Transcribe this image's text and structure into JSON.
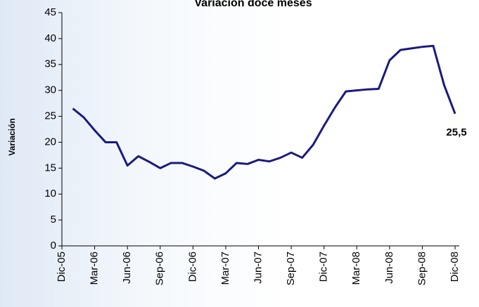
{
  "chart_data": {
    "type": "line",
    "title": "Variación doce meses",
    "y_label": "Variación",
    "categories": [
      "Dic-05",
      null,
      null,
      "Mar-06",
      null,
      null,
      "Jun-06",
      null,
      null,
      "Sep-06",
      null,
      null,
      "Dic-06",
      null,
      null,
      "Mar-07",
      null,
      null,
      "Jun-07",
      null,
      null,
      "Sep-07",
      null,
      null,
      "Dic-07",
      null,
      null,
      "Mar-08",
      null,
      null,
      "Jun-08",
      null,
      null,
      "Sep-08",
      null,
      null,
      "Dic-08"
    ],
    "series": [
      {
        "name": "Variación",
        "color": "#1a1a80",
        "values": [
          null,
          26.5,
          24.8,
          22.3,
          20,
          20,
          15.5,
          17.3,
          16.2,
          15,
          16,
          16,
          15.3,
          14.5,
          13,
          14,
          16,
          15.8,
          16.6,
          16.3,
          17,
          18,
          17,
          19.5,
          23.2,
          26.7,
          29.8,
          30,
          30.2,
          30.3,
          35.8,
          37.8,
          38.1,
          38.4,
          38.6,
          31,
          25.5
        ],
        "value_labels": [
          null,
          null,
          null,
          null,
          null,
          null,
          null,
          null,
          null,
          null,
          null,
          null,
          null,
          null,
          null,
          null,
          null,
          null,
          null,
          null,
          null,
          null,
          null,
          null,
          null,
          null,
          null,
          null,
          null,
          null,
          null,
          null,
          null,
          null,
          null,
          null,
          "25,5"
        ]
      }
    ],
    "ylim": [
      0,
      45
    ],
    "yticks": [
      0,
      5,
      10,
      15,
      20,
      25,
      30,
      35,
      40,
      45
    ],
    "grid": false
  }
}
